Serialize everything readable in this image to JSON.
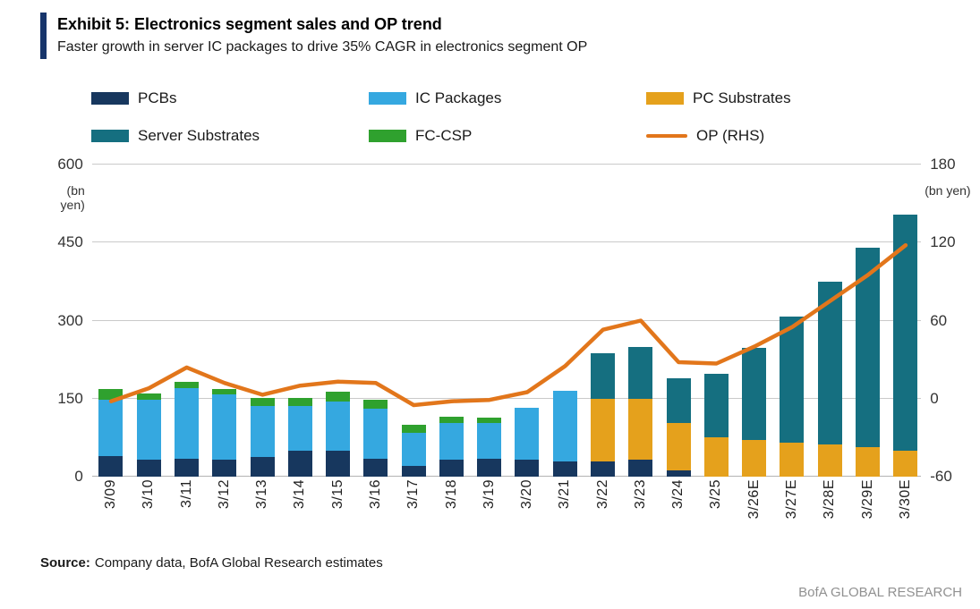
{
  "header": {
    "accent_color": "#17356b"
  },
  "legend": {
    "items": [
      {
        "label": "PCBs",
        "color": "#17375e",
        "type": "box"
      },
      {
        "label": "IC Packages",
        "color": "#35a8e0",
        "type": "box"
      },
      {
        "label": "PC Substrates",
        "color": "#e5a11c",
        "type": "box"
      },
      {
        "label": "Server Substrates",
        "color": "#156f80",
        "type": "box"
      },
      {
        "label": "FC-CSP",
        "color": "#2fa12e",
        "type": "box"
      },
      {
        "label": "OP (RHS)",
        "color": "#e2761b",
        "type": "line"
      }
    ]
  },
  "chart_data": {
    "type": "bar",
    "stacked": true,
    "title": "Exhibit 5: Electronics segment sales and OP trend",
    "subtitle": "Faster growth in server IC packages to drive 35% CAGR in electronics segment OP",
    "categories": [
      "3/09",
      "3/10",
      "3/11",
      "3/12",
      "3/13",
      "3/14",
      "3/15",
      "3/16",
      "3/17",
      "3/18",
      "3/19",
      "3/20",
      "3/21",
      "3/22",
      "3/23",
      "3/24",
      "3/25",
      "3/26E",
      "3/27E",
      "3/28E",
      "3/29E",
      "3/30E"
    ],
    "series": [
      {
        "name": "PCBs",
        "color": "#17375e",
        "values": [
          40,
          33,
          35,
          33,
          38,
          50,
          50,
          35,
          20,
          33,
          35,
          33,
          30,
          30,
          33,
          12,
          0,
          0,
          0,
          0,
          0,
          0
        ]
      },
      {
        "name": "IC Packages",
        "color": "#35a8e0",
        "values": [
          108,
          115,
          135,
          125,
          98,
          85,
          95,
          95,
          65,
          70,
          68,
          99,
          135,
          0,
          0,
          0,
          0,
          0,
          0,
          0,
          0,
          0
        ]
      },
      {
        "name": "PC Substrates",
        "color": "#e5a11c",
        "values": [
          0,
          0,
          0,
          0,
          0,
          0,
          0,
          0,
          0,
          0,
          0,
          0,
          0,
          120,
          117,
          91,
          75,
          70,
          66,
          62,
          57,
          50
        ]
      },
      {
        "name": "FC-CSP",
        "color": "#2fa12e",
        "values": [
          20,
          12,
          13,
          10,
          16,
          17,
          18,
          18,
          15,
          12,
          10,
          0,
          0,
          0,
          0,
          0,
          0,
          0,
          0,
          0,
          0,
          0
        ]
      },
      {
        "name": "Server Substrates",
        "color": "#156f80",
        "values": [
          0,
          0,
          0,
          0,
          0,
          0,
          0,
          0,
          0,
          0,
          0,
          0,
          0,
          88,
          100,
          87,
          122,
          177,
          241,
          313,
          383,
          453
        ]
      }
    ],
    "line_series": {
      "name": "OP (RHS)",
      "color": "#e2761b",
      "axis": "right",
      "values": [
        -2,
        8,
        24,
        12,
        3,
        10,
        13,
        12,
        -5,
        -2,
        -1,
        5,
        25,
        53,
        60,
        28,
        27,
        40,
        55,
        75,
        95,
        118
      ]
    },
    "left_axis": {
      "min": 0,
      "max": 600,
      "step": 150,
      "unit": "(bn yen)"
    },
    "right_axis": {
      "min": -60,
      "max": 180,
      "step": 60,
      "unit": "(bn yen)"
    },
    "grid": true,
    "legend_position": "top"
  },
  "footer": {
    "source_label": "Source:",
    "source_text": "Company data, BofA Global Research estimates",
    "brand": "BofA GLOBAL RESEARCH"
  }
}
